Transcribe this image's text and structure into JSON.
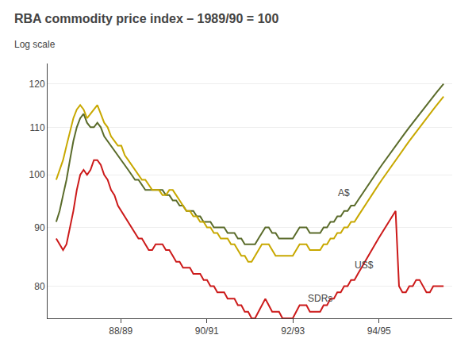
{
  "chart_data": {
    "type": "line",
    "title": "RBA commodity price index – 1989/90 = 100",
    "subtitle": "Log scale",
    "log": "y",
    "grid": true,
    "x": [
      1986.5,
      1986.5796,
      1986.6593,
      1986.7389,
      1986.8186,
      1986.8982,
      1986.9779,
      1987.0575,
      1987.1372,
      1987.2168,
      1987.2965,
      1987.3761,
      1987.4558,
      1987.5354,
      1987.615,
      1987.6947,
      1987.7743,
      1987.854,
      1987.9336,
      1988.0133,
      1988.0929,
      1988.1726,
      1988.2522,
      1988.3319,
      1988.4115,
      1988.4912,
      1988.5708,
      1988.6504,
      1988.7301,
      1988.8097,
      1988.8894,
      1988.969,
      1989.0487,
      1989.1283,
      1989.208,
      1989.2876,
      1989.3673,
      1989.4469,
      1989.5265,
      1989.6062,
      1989.6858,
      1989.7655,
      1989.8451,
      1989.9248,
      1990.0044,
      1990.0841,
      1990.1637,
      1990.2434,
      1990.323,
      1990.4027,
      1990.4823,
      1990.5619,
      1990.6416,
      1990.7212,
      1990.8009,
      1990.8805,
      1990.9602,
      1991.0398,
      1991.1195,
      1991.1991,
      1991.2788,
      1991.3584,
      1991.4381,
      1991.5177,
      1991.5973,
      1991.677,
      1991.7566,
      1991.8363,
      1991.9159,
      1991.9956,
      1992.0752,
      1992.1549,
      1992.2345,
      1992.3142,
      1992.3938,
      1992.4735,
      1992.5531,
      1992.6327,
      1992.7124,
      1992.792,
      1992.8717,
      1992.9513,
      1993.031,
      1993.1106,
      1993.1903,
      1993.2699,
      1993.3496,
      1993.4292,
      1993.5088,
      1993.5885,
      1993.6681,
      1993.7478,
      1993.8274,
      1993.9071,
      1993.9867,
      1994.0664,
      1994.146,
      1994.2257,
      1994.3053,
      1994.385,
      1994.4646,
      1994.5442,
      1994.6239,
      1994.7035,
      1994.7832,
      1994.8628,
      1994.9425,
      1995.0221,
      1995.1018,
      1995.1814,
      1995.2611,
      1995.3407,
      1995.4204,
      1995.5
    ],
    "xlim": [
      1986.3,
      1995.7
    ],
    "xticks": [
      {
        "value": 1988.0,
        "label": "88/89"
      },
      {
        "value": 1990.0,
        "label": "90/91"
      },
      {
        "value": 1992.0,
        "label": "92/93"
      },
      {
        "value": 1994.0,
        "label": "94/95"
      }
    ],
    "ylim": [
      75,
      125
    ],
    "yticks": [
      80,
      90,
      100,
      110,
      120
    ],
    "series": [
      {
        "name": "SDRs",
        "color": "#5a6b2a",
        "label_at": [
          1992.3,
          78.0
        ],
        "values": [
          91,
          93,
          96,
          99,
          103,
          107,
          110,
          112,
          113,
          111,
          110,
          110,
          111,
          110,
          108,
          107,
          106,
          105,
          104,
          103,
          102,
          101,
          100,
          99,
          99,
          98,
          97,
          97,
          97,
          97,
          97,
          97,
          96,
          96,
          95,
          95,
          94,
          94,
          93,
          93,
          93,
          92,
          92,
          91,
          91,
          91,
          90,
          90,
          90,
          90,
          89,
          89,
          89,
          88,
          88,
          87,
          87,
          87,
          87,
          88,
          89,
          90,
          90,
          89,
          89,
          88,
          88,
          88,
          88,
          88,
          89,
          90,
          90,
          90,
          89,
          89,
          89,
          89,
          90,
          90,
          91,
          91,
          92,
          92,
          93,
          93,
          94,
          94,
          95,
          96,
          97,
          98,
          99,
          100,
          101,
          102,
          103,
          104,
          105,
          106,
          107,
          108,
          109,
          110,
          111,
          112,
          113,
          114,
          115,
          116,
          117,
          118,
          119,
          120
        ]
      },
      {
        "name": "US$",
        "color": "#cc1a1a",
        "label_at": [
          1993.4,
          83.5
        ],
        "values": [
          88,
          87,
          86,
          87,
          90,
          93,
          97,
          100,
          101,
          100,
          101,
          103,
          103,
          102,
          100,
          99,
          97,
          96,
          94,
          93,
          92,
          91,
          90,
          89,
          88,
          88,
          87,
          86,
          86,
          87,
          87,
          87,
          86,
          86,
          85,
          84,
          84,
          83,
          83,
          83,
          82,
          82,
          82,
          81,
          81,
          80,
          80,
          79,
          79,
          79,
          78,
          78,
          78,
          77,
          77,
          76,
          76,
          75,
          75,
          76,
          77,
          78,
          77,
          76,
          76,
          76,
          75,
          75,
          75,
          75,
          76,
          77,
          77,
          77,
          76,
          76,
          76,
          76,
          77,
          77,
          78,
          78,
          79,
          79,
          80,
          80,
          81,
          81,
          82,
          83,
          84,
          85,
          86,
          87,
          88,
          89,
          90,
          91,
          92,
          93,
          80,
          79,
          79,
          80,
          80,
          81,
          81,
          80,
          79,
          79,
          80,
          80,
          80,
          80
        ]
      },
      {
        "name": "A$",
        "color": "#c8a800",
        "label_at": [
          1993.0,
          96.5
        ],
        "values": [
          99,
          101,
          103,
          106,
          109,
          112,
          114,
          115,
          114,
          112,
          113,
          114,
          115,
          113,
          111,
          110,
          108,
          107,
          106,
          106,
          104,
          103,
          102,
          101,
          100,
          99,
          99,
          98,
          97,
          97,
          97,
          96,
          96,
          97,
          97,
          96,
          95,
          94,
          93,
          93,
          92,
          92,
          91,
          91,
          90,
          90,
          89,
          89,
          88,
          88,
          88,
          87,
          87,
          86,
          85,
          85,
          84,
          84,
          85,
          86,
          87,
          87,
          87,
          86,
          85,
          85,
          85,
          85,
          85,
          85,
          86,
          87,
          87,
          87,
          86,
          86,
          86,
          86,
          87,
          87,
          88,
          88,
          89,
          89,
          90,
          90,
          91,
          91,
          92,
          93,
          94,
          95,
          96,
          97,
          98,
          99,
          100,
          101,
          102,
          103,
          104,
          105,
          106,
          107,
          108,
          109,
          110,
          111,
          112,
          113,
          114,
          115,
          116,
          117
        ]
      }
    ]
  }
}
